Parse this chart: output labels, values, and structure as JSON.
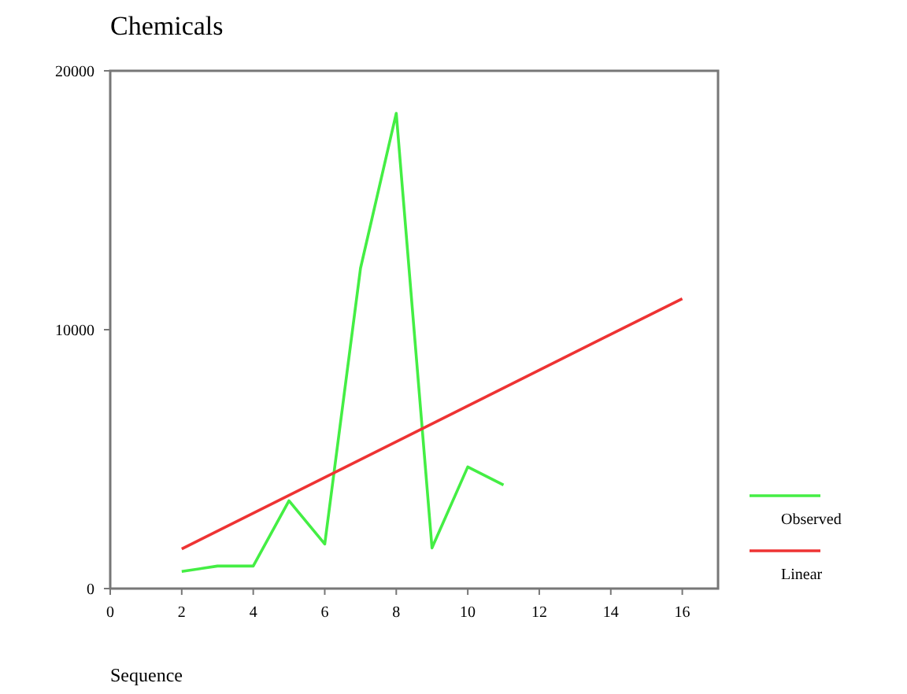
{
  "chart_data": {
    "type": "line",
    "title": "Chemicals",
    "xlabel": "Sequence",
    "xlim": [
      0,
      17
    ],
    "xticks": [
      0,
      2,
      4,
      6,
      8,
      10,
      12,
      14,
      16
    ],
    "ylim": [
      0,
      20000
    ],
    "yticks": [
      0,
      10000,
      20000
    ],
    "grid": false,
    "legend": "right",
    "series": [
      {
        "name": "Observed",
        "color": "#44ee44",
        "x": [
          2,
          3,
          4,
          5,
          6,
          7,
          8,
          9,
          10,
          11
        ],
        "values": [
          660,
          870,
          870,
          3390,
          1720,
          12370,
          18360,
          1570,
          4700,
          4000
        ]
      },
      {
        "name": "Linear",
        "color": "#ee3333",
        "x": [
          2,
          16
        ],
        "values": [
          1530,
          11200
        ]
      }
    ]
  }
}
